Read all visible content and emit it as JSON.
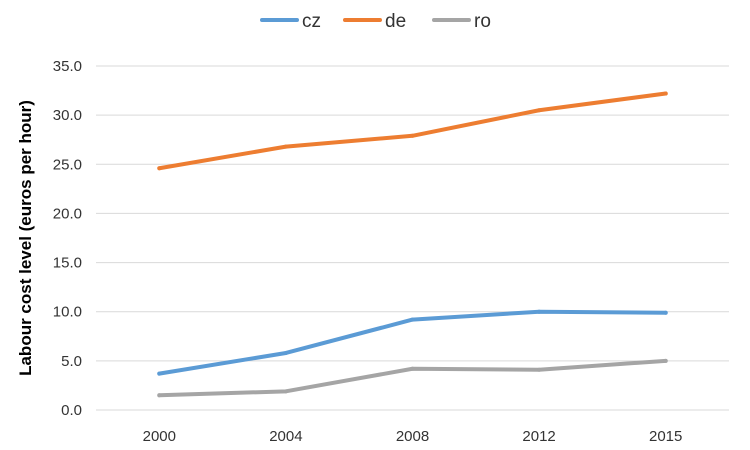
{
  "chart_data": {
    "type": "line",
    "title": "",
    "xlabel": "",
    "ylabel": "Labour cost level (euros per hour)",
    "categories": [
      "2000",
      "2004",
      "2008",
      "2012",
      "2015"
    ],
    "y_ticks": [
      "0.0",
      "5.0",
      "10.0",
      "15.0",
      "20.0",
      "25.0",
      "30.0",
      "35.0"
    ],
    "ylim": [
      0,
      35
    ],
    "grid": true,
    "legend_position": "top-center",
    "series": [
      {
        "name": "cz",
        "color": "#5b9bd5",
        "values": [
          3.7,
          5.8,
          9.2,
          10.0,
          9.9
        ]
      },
      {
        "name": "de",
        "color": "#ed7d31",
        "values": [
          24.6,
          26.8,
          27.9,
          30.5,
          32.2
        ]
      },
      {
        "name": "ro",
        "color": "#a5a5a5",
        "values": [
          1.5,
          1.9,
          4.2,
          4.1,
          5.0
        ]
      }
    ]
  }
}
